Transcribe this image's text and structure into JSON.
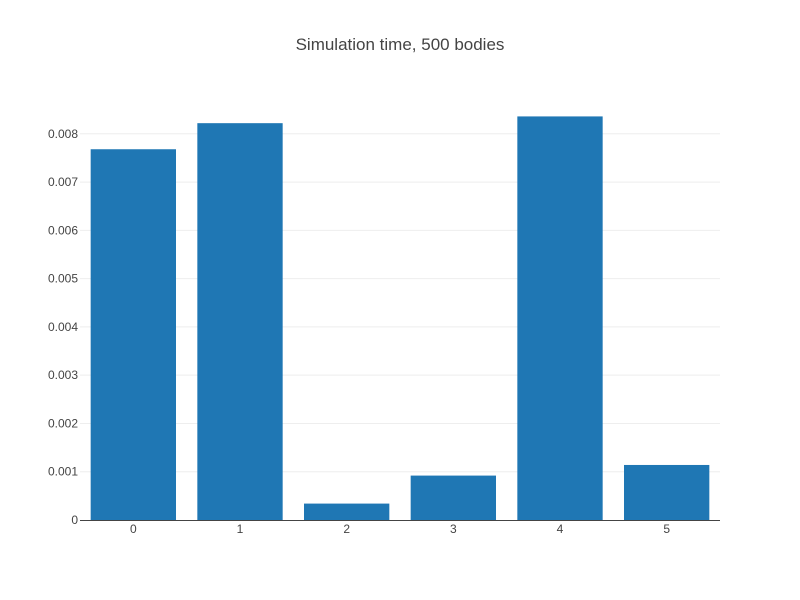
{
  "chart_data": {
    "type": "bar",
    "title": "Simulation time, 500 bodies",
    "xlabel": "",
    "ylabel": "",
    "categories": [
      "0",
      "1",
      "2",
      "3",
      "4",
      "5"
    ],
    "values": [
      0.00768,
      0.00822,
      0.00034,
      0.00092,
      0.00836,
      0.00114
    ],
    "ylim": [
      0,
      0.0087
    ],
    "yticks": [
      0,
      0.001,
      0.002,
      0.003,
      0.004,
      0.005,
      0.006,
      0.007,
      0.008
    ],
    "ytick_labels": [
      "0",
      "0.001",
      "0.002",
      "0.003",
      "0.004",
      "0.005",
      "0.006",
      "0.007",
      "0.008"
    ],
    "grid": true,
    "legend": "none",
    "colors": {
      "bar": "#1f77b4",
      "grid": "#eeeeee",
      "axis": "#444444",
      "text": "#444444"
    }
  }
}
